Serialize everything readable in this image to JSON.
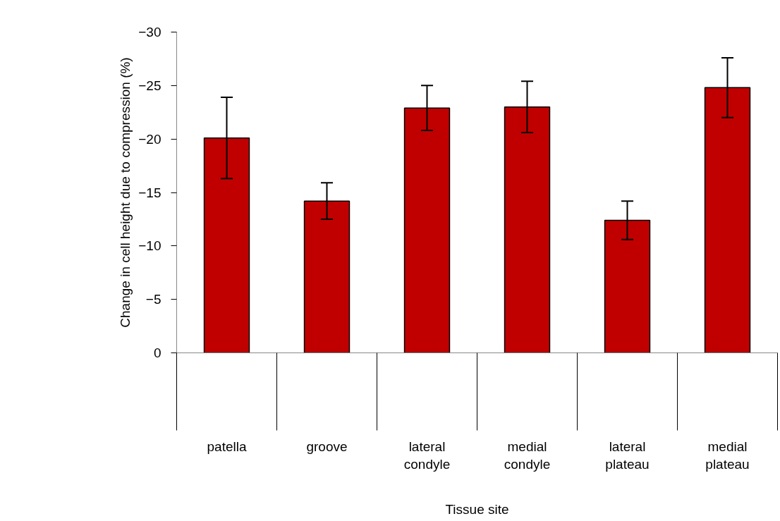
{
  "chart_data": {
    "type": "bar",
    "xlabel": "Tissue site",
    "ylabel": "Change in cell height due to compression (%)",
    "categories": [
      "patella",
      "groove",
      "lateral condyle",
      "medial condyle",
      "lateral plateau",
      "medial plateau"
    ],
    "values": [
      -20.1,
      -14.2,
      -22.9,
      -23.0,
      -12.4,
      -24.8
    ],
    "errors": [
      3.8,
      1.7,
      2.1,
      2.4,
      1.8,
      2.8
    ],
    "color": "#c00000",
    "ylim": [
      0,
      -30
    ],
    "yticks": [
      0,
      -5,
      -10,
      -15,
      -20,
      -25,
      -30
    ],
    "grid": false
  }
}
